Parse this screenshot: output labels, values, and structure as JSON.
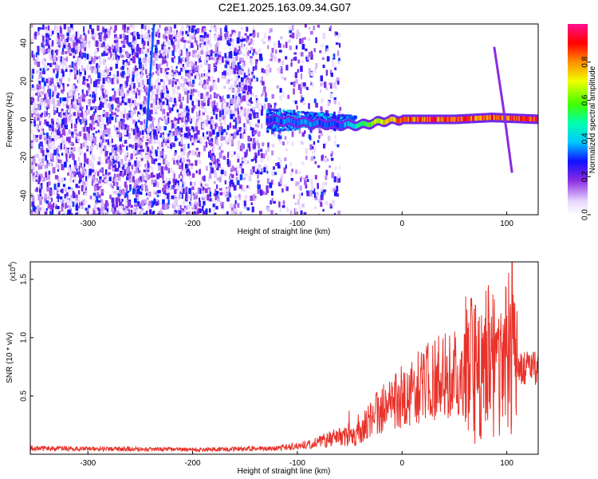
{
  "figure_title": "C2E1.2025.163.09.34.G07",
  "colors": {
    "snr_line": "#e8322a",
    "axis": "#000000",
    "background": "#ffffff"
  },
  "chart_data": [
    {
      "type": "heatmap",
      "xlabel": "Height of straight line (km)",
      "ylabel": "Frequency (Hz)",
      "xlim": [
        -355,
        130
      ],
      "ylim": [
        -50,
        50
      ],
      "x_ticks": [
        -300,
        -200,
        -100,
        0,
        100
      ],
      "x_tick_labels": [
        "-300",
        "-200",
        "-100",
        "0",
        "100"
      ],
      "y_ticks": [
        -40,
        -20,
        0,
        20,
        40
      ],
      "y_tick_labels": [
        "-40",
        "-20",
        "0",
        "20",
        "40"
      ],
      "colorbar": {
        "label": "Normalized spectral amplitude",
        "range": [
          0,
          1
        ],
        "ticks": [
          0.0,
          0.2,
          0.4,
          0.6,
          0.8
        ],
        "tick_labels": [
          "0.0",
          "0.2",
          "0.4",
          "0.6",
          "0.8"
        ],
        "colormap": "rainbow (white-violet-blue-cyan-green-yellow-red-magenta)"
      },
      "features": {
        "noise_region_x": [
          -355,
          -60
        ],
        "carrier_track": [
          {
            "x": -130,
            "y": 0,
            "amp": 0.3
          },
          {
            "x": -110,
            "y": -1,
            "amp": 0.35
          },
          {
            "x": -90,
            "y": -2,
            "amp": 0.35
          },
          {
            "x": -60,
            "y": -3,
            "amp": 0.3
          },
          {
            "x": -40,
            "y": -3,
            "amp": 0.5
          },
          {
            "x": -20,
            "y": -1,
            "amp": 0.7
          },
          {
            "x": 0,
            "y": 0,
            "amp": 0.85
          },
          {
            "x": 50,
            "y": 0,
            "amp": 0.9
          },
          {
            "x": 85,
            "y": 1,
            "amp": 0.85
          },
          {
            "x": 130,
            "y": 0,
            "amp": 0.95
          }
        ],
        "streak_line": [
          {
            "x": -244,
            "y": -5
          },
          {
            "x": -237,
            "y": 50
          }
        ],
        "descending_tail": [
          {
            "x": 88,
            "y": 38
          },
          {
            "x": 97,
            "y": 5
          },
          {
            "x": 105,
            "y": -28
          }
        ]
      }
    },
    {
      "type": "line",
      "xlabel": "Height of straight line (km)",
      "ylabel": "SNR (10 * v/v)",
      "y_multiplier_label": "(x10",
      "y_multiplier_exp": "4",
      "xlim": [
        -355,
        130
      ],
      "ylim": [
        0,
        16500
      ],
      "x_ticks": [
        -300,
        -200,
        -100,
        0,
        100
      ],
      "x_tick_labels": [
        "-300",
        "-200",
        "-100",
        "0",
        "100"
      ],
      "y_ticks": [
        5000,
        10000,
        15000
      ],
      "y_tick_labels": [
        "0.5",
        "1.0",
        "1.5"
      ],
      "series": [
        {
          "envelope": [
            {
              "x": -355,
              "y": 500
            },
            {
              "x": -200,
              "y": 400
            },
            {
              "x": -120,
              "y": 500
            },
            {
              "x": -80,
              "y": 1000
            },
            {
              "x": -60,
              "y": 1500
            },
            {
              "x": -45,
              "y": 1500
            },
            {
              "x": -35,
              "y": 2500
            },
            {
              "x": -20,
              "y": 3800
            },
            {
              "x": 0,
              "y": 5000
            },
            {
              "x": 20,
              "y": 6000
            },
            {
              "x": 40,
              "y": 6800
            },
            {
              "x": 60,
              "y": 7200
            },
            {
              "x": 80,
              "y": 7600
            },
            {
              "x": 95,
              "y": 8000
            },
            {
              "x": 105,
              "y": 7200
            },
            {
              "x": 130,
              "y": 7400
            }
          ],
          "peak": {
            "x": 105,
            "y": 16500
          }
        }
      ]
    }
  ]
}
